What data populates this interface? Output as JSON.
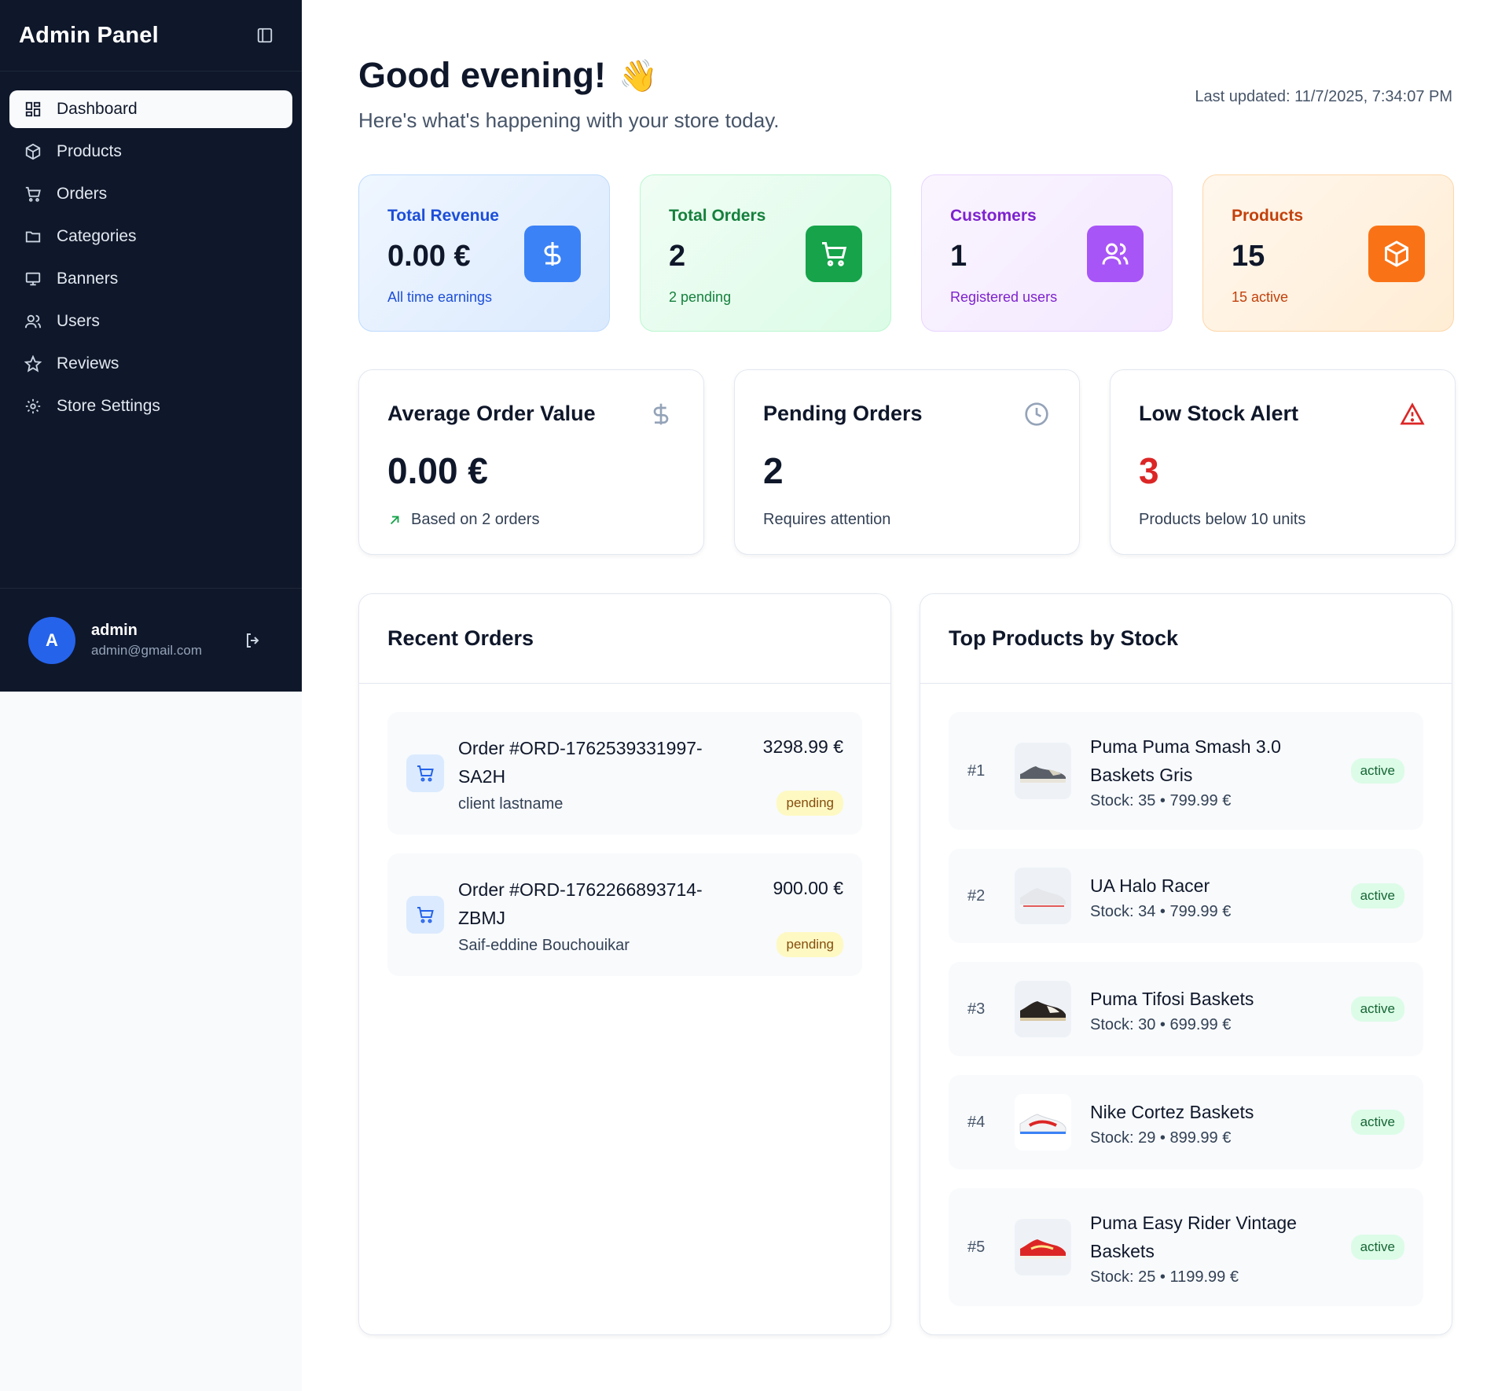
{
  "sidebar": {
    "title": "Admin Panel",
    "items": [
      {
        "label": "Dashboard"
      },
      {
        "label": "Products"
      },
      {
        "label": "Orders"
      },
      {
        "label": "Categories"
      },
      {
        "label": "Banners"
      },
      {
        "label": "Users"
      },
      {
        "label": "Reviews"
      },
      {
        "label": "Store Settings"
      }
    ],
    "user": {
      "initial": "A",
      "name": "admin",
      "email": "admin@gmail.com"
    }
  },
  "header": {
    "greeting": "Good evening!",
    "wave": "👋",
    "subtitle": "Here's what's happening with your store today.",
    "last_updated": "Last updated: 11/7/2025, 7:34:07 PM"
  },
  "stats": [
    {
      "label": "Total Revenue",
      "value": "0.00 €",
      "note": "All time earnings",
      "accent": "#3b82f6"
    },
    {
      "label": "Total Orders",
      "value": "2",
      "note": "2 pending",
      "accent": "#16a34a"
    },
    {
      "label": "Customers",
      "value": "1",
      "note": "Registered users",
      "accent": "#a855f7"
    },
    {
      "label": "Products",
      "value": "15",
      "note": "15 active",
      "accent": "#f97316"
    }
  ],
  "metrics": [
    {
      "title": "Average Order Value",
      "value": "0.00 €",
      "desc": "Based on 2 orders"
    },
    {
      "title": "Pending Orders",
      "value": "2",
      "desc": "Requires attention"
    },
    {
      "title": "Low Stock Alert",
      "value": "3",
      "desc": "Products below 10 units",
      "value_color": "#dc2626"
    }
  ],
  "recent_orders": {
    "title": "Recent Orders",
    "items": [
      {
        "id": "Order #ORD-1762539331997-SA2H",
        "customer": "client lastname",
        "amount": "3298.99 €",
        "status": "pending"
      },
      {
        "id": "Order #ORD-1762266893714-ZBMJ",
        "customer": "Saif-eddine Bouchouikar",
        "amount": "900.00 €",
        "status": "pending"
      }
    ]
  },
  "top_products": {
    "title": "Top Products by Stock",
    "items": [
      {
        "rank": "#1",
        "name": "Puma Puma Smash 3.0 Baskets Gris",
        "meta": "Stock: 35 • 799.99 €",
        "status": "active"
      },
      {
        "rank": "#2",
        "name": "UA Halo Racer",
        "meta": "Stock: 34 • 799.99 €",
        "status": "active"
      },
      {
        "rank": "#3",
        "name": "Puma Tifosi Baskets",
        "meta": "Stock: 30 • 699.99 €",
        "status": "active"
      },
      {
        "rank": "#4",
        "name": "Nike Cortez Baskets",
        "meta": "Stock: 29 • 899.99 €",
        "status": "active"
      },
      {
        "rank": "#5",
        "name": "Puma Easy Rider Vintage Baskets",
        "meta": "Stock: 25 • 1199.99 €",
        "status": "active"
      }
    ]
  }
}
